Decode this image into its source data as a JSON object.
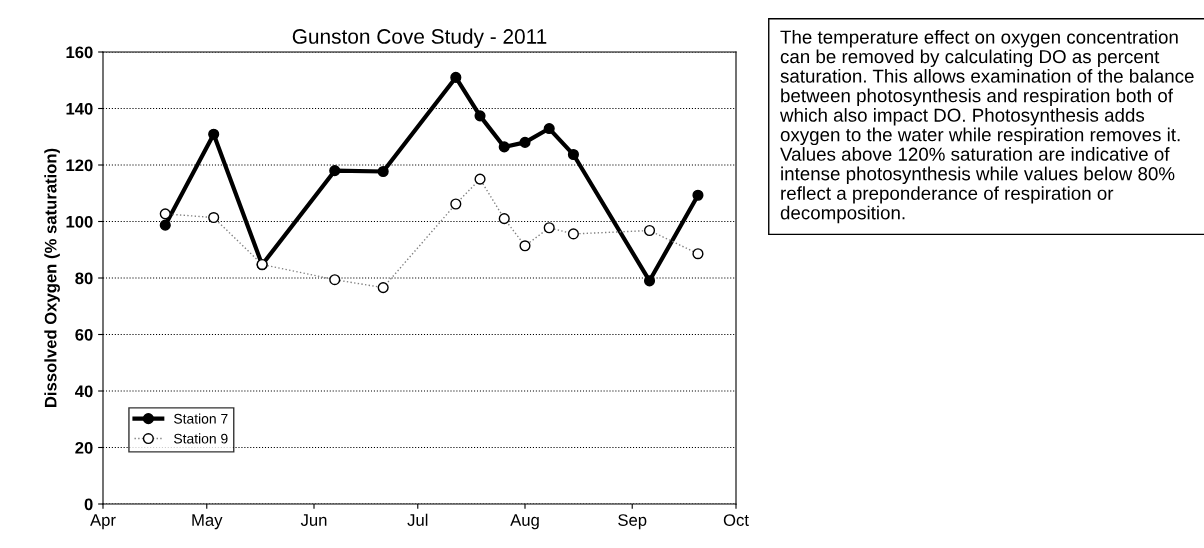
{
  "chart_data": {
    "type": "line",
    "title": "Gunston Cove Study - 2011",
    "ylabel": "Dissolved Oxygen (% saturation)",
    "x": [
      "2011-04-19",
      "2011-05-03",
      "2011-05-17",
      "2011-06-07",
      "2011-06-21",
      "2011-07-12",
      "2011-07-19",
      "2011-07-26",
      "2011-08-01",
      "2011-08-08",
      "2011-08-15",
      "2011-09-06",
      "2011-09-20"
    ],
    "series": [
      {
        "name": "Station 7",
        "color": "#000000",
        "marker": "circle",
        "line_style": "solid",
        "values": [
          98.7,
          130.9,
          84.7,
          118,
          117.7,
          151,
          137.4,
          126.4,
          128,
          132.9,
          123.7,
          79,
          109.3
        ]
      },
      {
        "name": "Station 9",
        "color": "#808080",
        "marker": "circle",
        "line_style": "dotted",
        "values": [
          102.7,
          101.4,
          84.8,
          79.4,
          76.6,
          106.2,
          115,
          101,
          91.4,
          97.8,
          95.6,
          96.8,
          88.6
        ]
      }
    ],
    "xlim": [
      "2011-04-01",
      "2011-10-01"
    ],
    "xticks": [
      {
        "value": "2011-04-01",
        "label": "Apr"
      },
      {
        "value": "2011-05-01",
        "label": "May"
      },
      {
        "value": "2011-06-01",
        "label": "Jun"
      },
      {
        "value": "2011-07-01",
        "label": "Jul"
      },
      {
        "value": "2011-08-01",
        "label": "Aug"
      },
      {
        "value": "2011-09-01",
        "label": "Sep"
      },
      {
        "value": "2011-10-01",
        "label": "Oct"
      }
    ],
    "ylim": [
      0,
      160
    ],
    "yticks": [
      0,
      20,
      40,
      60,
      80,
      100,
      120,
      140,
      160
    ],
    "grid": "y",
    "legend": "bottom left",
    "annotations": [
      "The temperature effect on oxygen concentration can be removed by calculating DO as percent saturation. This allows examination of the balance between photosynthesis and respiration both of which also impact DO. Photosynthesis adds oxygen to the water while respiration removes it.  Values above 120% saturation are indicative of intense photosynthesis while values below 80% reflect a preponderance of respiration or decomposition."
    ]
  }
}
